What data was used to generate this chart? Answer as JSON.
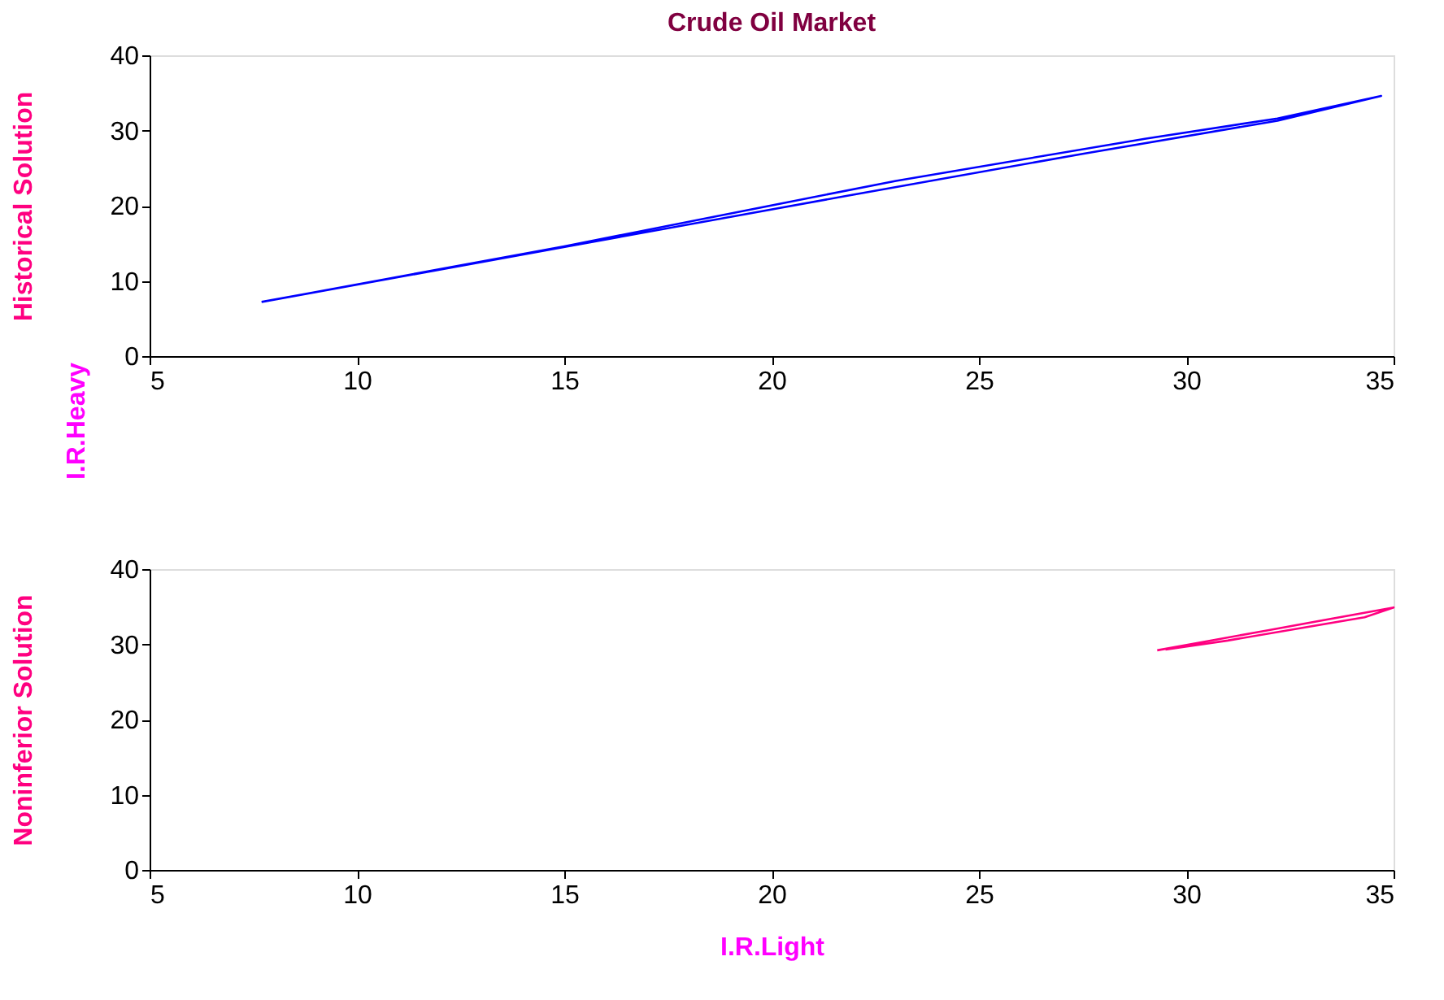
{
  "chart_data": [
    {
      "type": "line",
      "title": "Crude Oil Market",
      "ylabel": "Historical Solution",
      "annotations": [
        "I.R.Heavy"
      ],
      "series": [
        {
          "color": "#0000ff",
          "x": [
            7.7,
            15.2,
            21.8,
            27.5,
            32.2,
            34.7,
            32.2,
            29.0,
            23.0,
            15.0,
            7.8
          ],
          "values": [
            7.2,
            14.7,
            21.3,
            26.9,
            31.3,
            34.6,
            31.6,
            28.9,
            23.3,
            14.6,
            7.3
          ]
        }
      ],
      "xlim": [
        5,
        35
      ],
      "ylim": [
        0,
        40
      ],
      "xticks": [
        5,
        10,
        15,
        20,
        25,
        30,
        35
      ],
      "yticks": [
        0,
        10,
        20,
        30,
        40
      ],
      "grid": false
    },
    {
      "type": "line",
      "ylabel": "Noninferior Solution",
      "xlabel": "I.R.Light",
      "series": [
        {
          "color": "#ff0080",
          "x": [
            29.3,
            32.0,
            35.0,
            34.3,
            31.0,
            29.5
          ],
          "values": [
            29.2,
            31.9,
            34.9,
            33.6,
            30.5,
            29.3
          ]
        }
      ],
      "xlim": [
        5,
        35
      ],
      "ylim": [
        0,
        40
      ],
      "xticks": [
        5,
        10,
        15,
        20,
        25,
        30,
        35
      ],
      "yticks": [
        0,
        10,
        20,
        30,
        40
      ],
      "grid": false
    }
  ]
}
